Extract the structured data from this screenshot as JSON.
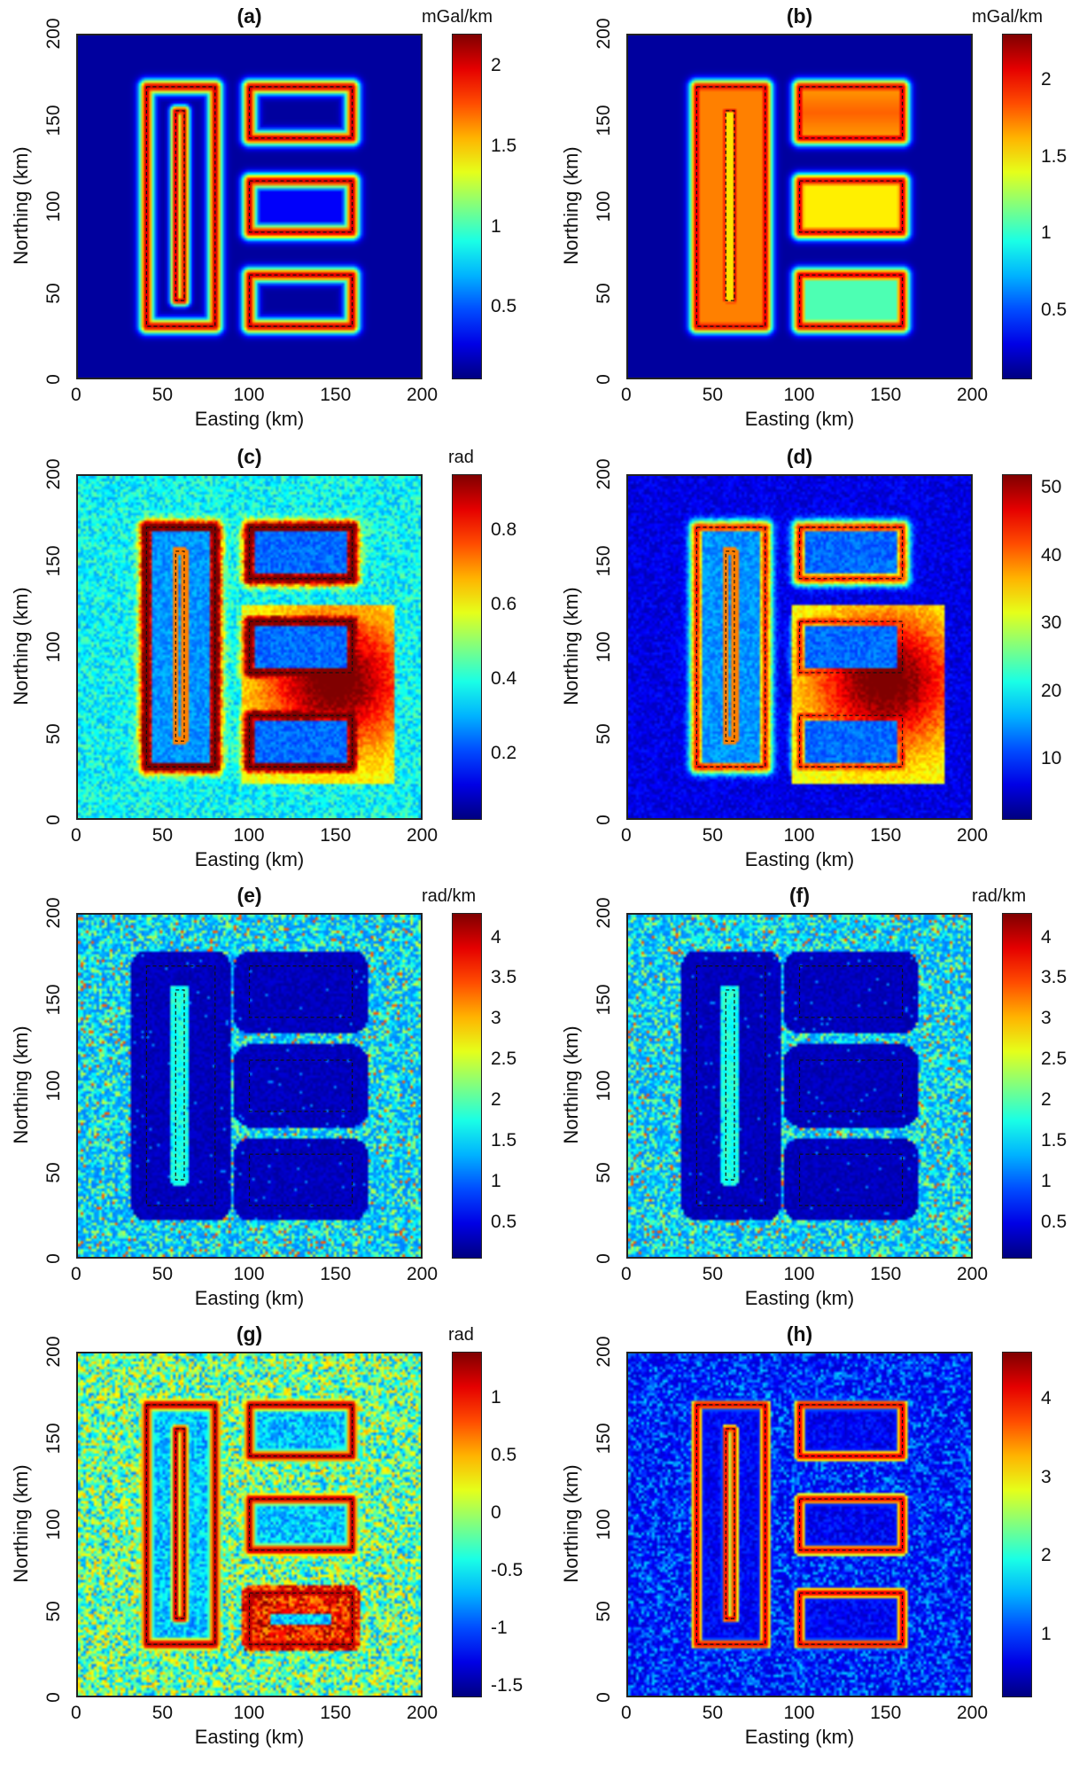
{
  "colormap": "jet",
  "chart_data": [
    {
      "panel": "(a)",
      "type": "heatmap",
      "title": "(a)",
      "colorbar_unit": "mGal/km",
      "colorbar_ticks": [
        "0.5",
        "1",
        "1.5",
        "2"
      ],
      "colorbar_range": [
        0.05,
        2.2
      ],
      "xlabel": "Easting (km)",
      "ylabel": "Northing (km)",
      "xticks": [
        "0",
        "50",
        "100",
        "150",
        "200"
      ],
      "yticks": [
        "0",
        "50",
        "100",
        "150",
        "200"
      ],
      "xlim": [
        0,
        200
      ],
      "ylim": [
        0,
        200
      ],
      "grid": false,
      "prisms": [
        {
          "x": [
            40,
            80
          ],
          "y": [
            30,
            170
          ]
        },
        {
          "x": [
            100,
            160
          ],
          "y": [
            140,
            170
          ]
        },
        {
          "x": [
            100,
            160
          ],
          "y": [
            85,
            115
          ]
        },
        {
          "x": [
            100,
            160
          ],
          "y": [
            30,
            60
          ]
        }
      ]
    },
    {
      "panel": "(b)",
      "type": "heatmap",
      "title": "(b)",
      "colorbar_unit": "mGal/km",
      "colorbar_ticks": [
        "0.5",
        "1",
        "1.5",
        "2"
      ],
      "colorbar_range": [
        0.05,
        2.3
      ],
      "xlabel": "Easting (km)",
      "ylabel": "Northing (km)",
      "xticks": [
        "0",
        "50",
        "100",
        "150",
        "200"
      ],
      "yticks": [
        "0",
        "50",
        "100",
        "150",
        "200"
      ],
      "xlim": [
        0,
        200
      ],
      "ylim": [
        0,
        200
      ],
      "grid": false
    },
    {
      "panel": "(c)",
      "type": "heatmap",
      "title": "(c)",
      "colorbar_unit": "rad",
      "colorbar_ticks": [
        "0.2",
        "0.4",
        "0.6",
        "0.8"
      ],
      "colorbar_range": [
        0.02,
        0.95
      ],
      "xlabel": "Easting (km)",
      "ylabel": "Northing (km)",
      "xticks": [
        "0",
        "50",
        "100",
        "150",
        "200"
      ],
      "yticks": [
        "0",
        "50",
        "100",
        "150",
        "200"
      ],
      "xlim": [
        0,
        200
      ],
      "ylim": [
        0,
        200
      ],
      "grid": false
    },
    {
      "panel": "(d)",
      "type": "heatmap",
      "title": "(d)",
      "colorbar_unit": "",
      "colorbar_ticks": [
        "10",
        "20",
        "30",
        "40",
        "50"
      ],
      "colorbar_range": [
        1,
        52
      ],
      "xlabel": "Easting (km)",
      "ylabel": "Northing (km)",
      "xticks": [
        "0",
        "50",
        "100",
        "150",
        "200"
      ],
      "yticks": [
        "0",
        "50",
        "100",
        "150",
        "200"
      ],
      "xlim": [
        0,
        200
      ],
      "ylim": [
        0,
        200
      ],
      "grid": false
    },
    {
      "panel": "(e)",
      "type": "heatmap",
      "title": "(e)",
      "colorbar_unit": "rad/km",
      "colorbar_ticks": [
        "0.5",
        "1",
        "1.5",
        "2",
        "2.5",
        "3",
        "3.5",
        "4"
      ],
      "colorbar_range": [
        0.05,
        4.3
      ],
      "xlabel": "Easting (km)",
      "ylabel": "Northing (km)",
      "xticks": [
        "0",
        "50",
        "100",
        "150",
        "200"
      ],
      "yticks": [
        "0",
        "50",
        "100",
        "150",
        "200"
      ],
      "xlim": [
        0,
        200
      ],
      "ylim": [
        0,
        200
      ],
      "grid": false
    },
    {
      "panel": "(f)",
      "type": "heatmap",
      "title": "(f)",
      "colorbar_unit": "rad/km",
      "colorbar_ticks": [
        "0.5",
        "1",
        "1.5",
        "2",
        "2.5",
        "3",
        "3.5",
        "4"
      ],
      "colorbar_range": [
        0.05,
        4.3
      ],
      "xlabel": "Easting (km)",
      "ylabel": "Northing (km)",
      "xticks": [
        "0",
        "50",
        "100",
        "150",
        "200"
      ],
      "yticks": [
        "0",
        "50",
        "100",
        "150",
        "200"
      ],
      "xlim": [
        0,
        200
      ],
      "ylim": [
        0,
        200
      ],
      "grid": false
    },
    {
      "panel": "(g)",
      "type": "heatmap",
      "title": "(g)",
      "colorbar_unit": "rad",
      "colorbar_ticks": [
        "-1.5",
        "-1",
        "-0.5",
        "0",
        "0.5",
        "1"
      ],
      "colorbar_range": [
        -1.6,
        1.4
      ],
      "xlabel": "Easting (km)",
      "ylabel": "Northing (km)",
      "xticks": [
        "0",
        "50",
        "100",
        "150",
        "200"
      ],
      "yticks": [
        "0",
        "50",
        "100",
        "150",
        "200"
      ],
      "xlim": [
        0,
        200
      ],
      "ylim": [
        0,
        200
      ],
      "grid": false
    },
    {
      "panel": "(h)",
      "type": "heatmap",
      "title": "(h)",
      "colorbar_unit": "",
      "colorbar_ticks": [
        "1",
        "2",
        "3",
        "4"
      ],
      "colorbar_range": [
        0.2,
        4.6
      ],
      "xlabel": "Easting (km)",
      "ylabel": "Northing (km)",
      "xticks": [
        "0",
        "50",
        "100",
        "150",
        "200"
      ],
      "yticks": [
        "0",
        "50",
        "100",
        "150",
        "200"
      ],
      "xlim": [
        0,
        200
      ],
      "ylim": [
        0,
        200
      ],
      "grid": false
    }
  ],
  "inner_box": {
    "x": [
      57,
      62
    ],
    "y": [
      45,
      156
    ]
  }
}
